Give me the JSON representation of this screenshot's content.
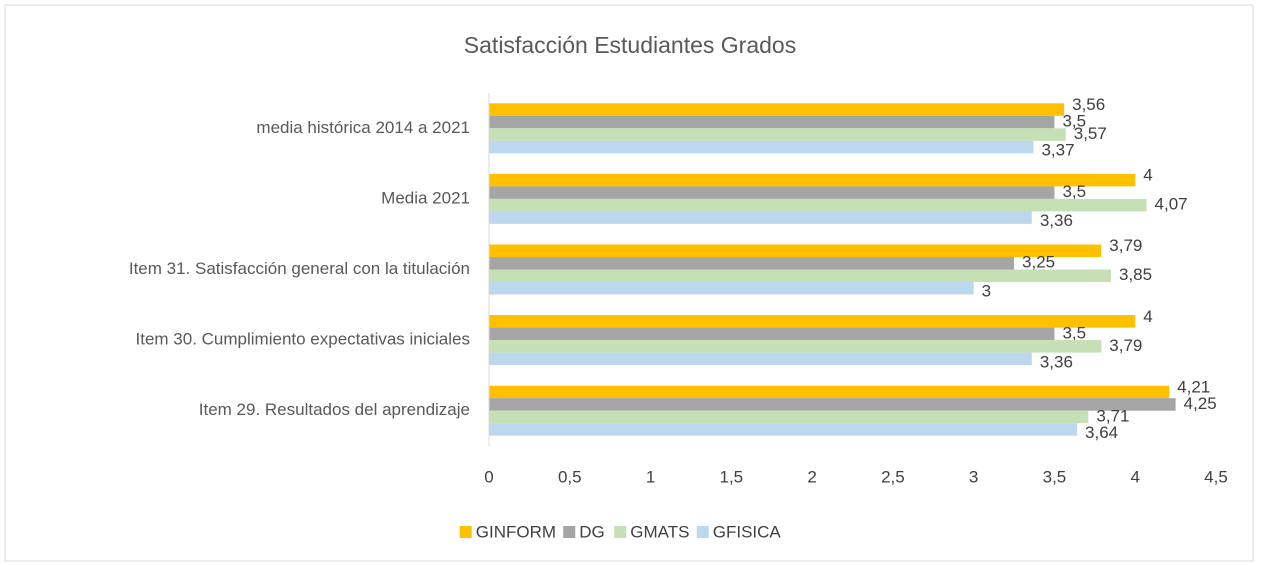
{
  "chart_data": {
    "type": "hbar",
    "title": "Satisfacción Estudiantes Grados",
    "categories": [
      "media histórica 2014 a 2021",
      "Media 2021",
      "Item 31. Satisfacción general con la titulación",
      "Item 30. Cumplimiento expectativas iniciales",
      "Item 29. Resultados del aprendizaje"
    ],
    "series": [
      {
        "name": "GINFORM",
        "color": "#FFC000",
        "values": [
          3.56,
          4,
          3.79,
          4,
          4.21
        ],
        "value_labels": [
          "3,56",
          "4",
          "3,79",
          "4",
          "4,21"
        ]
      },
      {
        "name": "DG",
        "color": "#A5A5A5",
        "values": [
          3.5,
          3.5,
          3.25,
          3.5,
          4.25
        ],
        "value_labels": [
          "3,5",
          "3,5",
          "3,25",
          "3,5",
          "4,25"
        ]
      },
      {
        "name": "GMATS",
        "color": "#C5E0B4",
        "values": [
          3.57,
          4.07,
          3.85,
          3.79,
          3.71
        ],
        "value_labels": [
          "3,57",
          "4,07",
          "3,85",
          "3,79",
          "3,71"
        ]
      },
      {
        "name": "GFISICA",
        "color": "#BDD7EE",
        "values": [
          3.37,
          3.36,
          3,
          3.36,
          3.64
        ],
        "value_labels": [
          "3,37",
          "3,36",
          "3",
          "3,36",
          "3,64"
        ]
      }
    ],
    "xlim": [
      0,
      4.5
    ],
    "xticks": [
      0,
      {
        "value": 0.5,
        "label": "0,5"
      },
      1,
      {
        "value": 1.5,
        "label": "1,5"
      },
      2,
      {
        "value": 2.5,
        "label": "2,5"
      },
      3,
      {
        "value": 3.5,
        "label": "3,5"
      },
      4,
      {
        "value": 4.5,
        "label": "4,5"
      }
    ],
    "grid": false,
    "legend": "bottom"
  }
}
